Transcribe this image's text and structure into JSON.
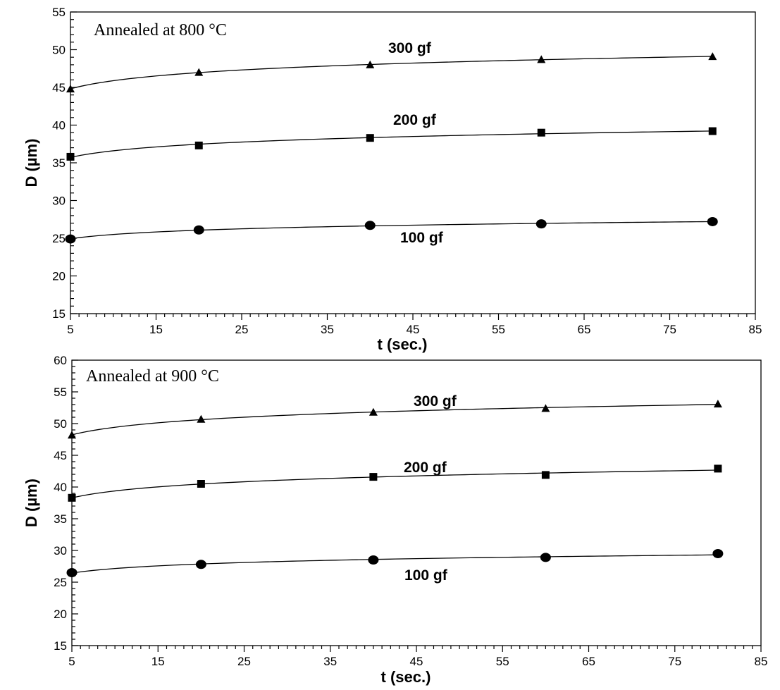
{
  "chart_data": [
    {
      "type": "line",
      "annotation": "Annealed at 800 °C",
      "xlabel": "t (sec.)",
      "ylabel": "D (µm)",
      "xlim": [
        5,
        85
      ],
      "ylim": [
        15,
        55
      ],
      "xticks": [
        5,
        15,
        25,
        35,
        45,
        55,
        65,
        75,
        85
      ],
      "yticks": [
        15,
        20,
        25,
        30,
        35,
        40,
        45,
        50,
        55
      ],
      "x": [
        5,
        20,
        40,
        60,
        80
      ],
      "series": [
        {
          "label": "300 gf",
          "marker": "triangle",
          "values": [
            44.8,
            47.0,
            48.0,
            48.7,
            49.1
          ]
        },
        {
          "label": "200 gf",
          "marker": "square",
          "values": [
            35.8,
            37.3,
            38.3,
            39.0,
            39.2
          ]
        },
        {
          "label": "100 gf",
          "marker": "circle",
          "values": [
            24.9,
            26.1,
            26.7,
            26.9,
            27.2
          ]
        }
      ],
      "grid": false
    },
    {
      "type": "line",
      "annotation": "Annealed at 900 °C",
      "xlabel": "t (sec.)",
      "ylabel": "D (µm)",
      "xlim": [
        5,
        85
      ],
      "ylim": [
        15,
        60
      ],
      "xticks": [
        5,
        15,
        25,
        35,
        45,
        55,
        65,
        75,
        85
      ],
      "yticks": [
        15,
        20,
        25,
        30,
        35,
        40,
        45,
        50,
        55,
        60
      ],
      "x": [
        5,
        20,
        40,
        60,
        80
      ],
      "series": [
        {
          "label": "300 gf",
          "marker": "triangle",
          "values": [
            48.2,
            50.7,
            51.8,
            52.4,
            53.1
          ]
        },
        {
          "label": "200 gf",
          "marker": "square",
          "values": [
            38.3,
            40.5,
            41.6,
            41.9,
            42.9
          ]
        },
        {
          "label": "100 gf",
          "marker": "circle",
          "values": [
            26.5,
            27.8,
            28.5,
            28.9,
            29.5
          ]
        }
      ],
      "grid": false
    }
  ]
}
